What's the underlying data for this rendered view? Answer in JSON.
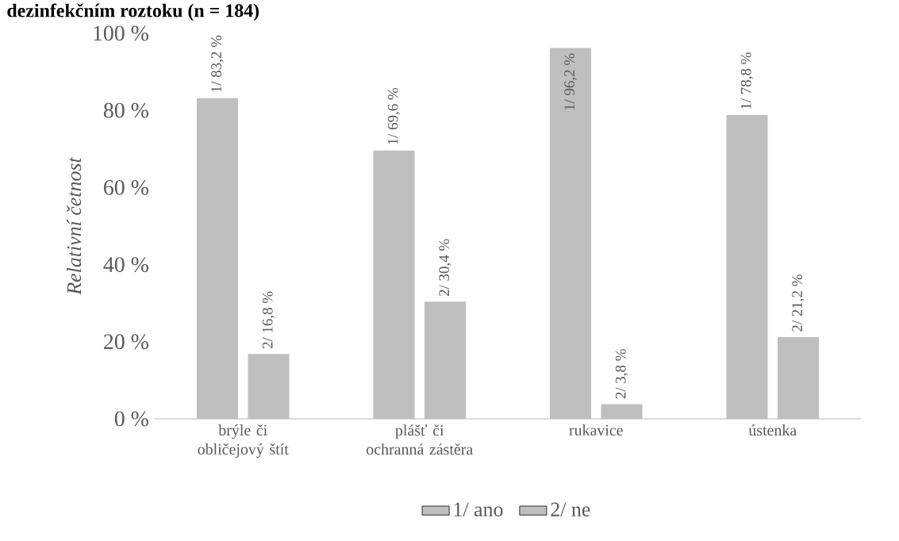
{
  "chart_data": {
    "type": "bar",
    "title": "dezinfekčním roztoku (n = 184)",
    "ylabel": "Relativní četnost",
    "categories": [
      "brýle či obličejový štít",
      "plášť či ochranná zástěra",
      "rukavice",
      "ústenka"
    ],
    "series": [
      {
        "name": "1/ ano",
        "color": "#bfbfbf",
        "values": [
          83.2,
          69.6,
          96.2,
          78.8
        ],
        "value_labels": [
          "1/ 83,2 %",
          "1/ 69,6 %",
          "1/ 96,2 %",
          "1/ 78,8 %"
        ]
      },
      {
        "name": "2/ ne",
        "color": "#bfbfbf",
        "values": [
          16.8,
          30.4,
          3.8,
          21.2
        ],
        "value_labels": [
          "2/ 16,8 %",
          "2/ 30,4 %",
          "2/ 3,8 %",
          "2/ 21,2 %"
        ]
      }
    ],
    "ylim": [
      0,
      100
    ],
    "yticks": [
      {
        "value": 0,
        "label": "0 %"
      },
      {
        "value": 20,
        "label": "20 %"
      },
      {
        "value": 40,
        "label": "40 %"
      },
      {
        "value": 60,
        "label": "60 %"
      },
      {
        "value": 80,
        "label": "80 %"
      },
      {
        "value": 100,
        "label": "100 %"
      }
    ],
    "legend": "bottom",
    "grid": false
  }
}
